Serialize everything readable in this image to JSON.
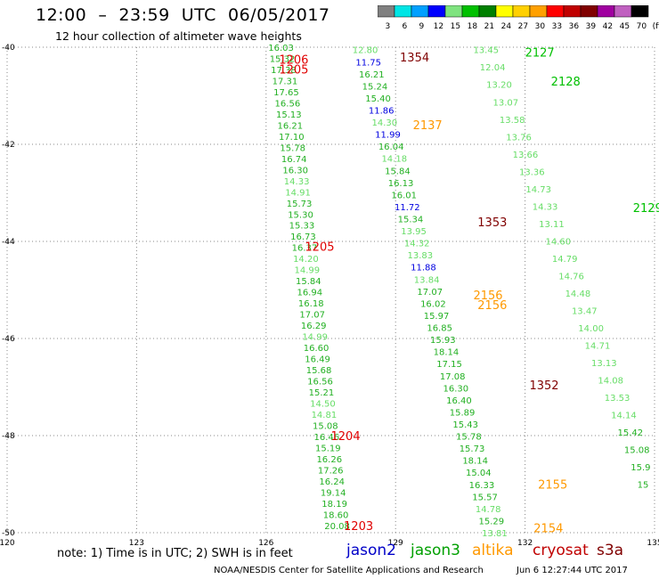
{
  "title": "12:00  –  23:59  UTC  06/05/2017",
  "subtitle": "12 hour collection of altimeter wave heights",
  "colorbar": {
    "labels": [
      "3",
      "6",
      "9",
      "12",
      "15",
      "18",
      "21",
      "24",
      "27",
      "30",
      "33",
      "36",
      "39",
      "42",
      "45",
      "70",
      "(ft)"
    ],
    "colors": [
      "#808080",
      "#00e5e5",
      "#00a0ff",
      "#0000ff",
      "#7fe37f",
      "#00c000",
      "#008000",
      "#ffff00",
      "#ffd000",
      "#ffa000",
      "#ff0000",
      "#c00000",
      "#800000",
      "#a000a0",
      "#c060c0",
      "#000000"
    ]
  },
  "note": "note:  1)  Time is in UTC;  2)  SWH is in feet",
  "legend": [
    {
      "name": "jason2",
      "color": "#0000c8"
    },
    {
      "name": "jason3",
      "color": "#00a000"
    },
    {
      "name": "altika",
      "color": "#ff9900"
    },
    {
      "name": "cryosat",
      "color": "#c00000"
    },
    {
      "name": "s3a",
      "color": "#800000"
    }
  ],
  "credit": "NOAA/NESDIS Center for Satellite Applications and Research",
  "timestamp": "Jun  6 12:27:44 UTC 2017",
  "chart_data": {
    "type": "scatter",
    "xlim": [
      120,
      135
    ],
    "ylim": [
      -50,
      -40
    ],
    "x_ticks": [
      "120",
      "123",
      "126",
      "129",
      "132",
      "135"
    ],
    "y_ticks": [
      "-40",
      "-42",
      "-44",
      "-46",
      "-48",
      "-50"
    ],
    "grid": true,
    "tracks": [
      {
        "name": "cryosat-1206",
        "color": "#00c000",
        "labels_color": "#e00000",
        "x0": 126.05,
        "y0": -40.0,
        "x1": 127.35,
        "y1": -49.85,
        "values": [
          "16.03",
          "15.32",
          "17.38",
          "17.31",
          "17.65",
          "16.56",
          "15.13",
          "16.21",
          "17.10",
          "15.78",
          "16.74",
          "16.30",
          "14.33",
          "14.91",
          "15.73",
          "15.30",
          "15.33",
          "16.73",
          "16.37",
          "14.20",
          "14.99",
          "15.84",
          "16.94",
          "16.18",
          "17.07",
          "16.29",
          "14.99",
          "16.60",
          "16.49",
          "15.68",
          "16.56",
          "15.21",
          "14.50",
          "14.81",
          "15.08",
          "16.46",
          "15.19",
          "16.26",
          "17.26",
          "16.24",
          "19.14",
          "18.19",
          "18.60",
          "20.08"
        ],
        "times": [
          {
            "t": "1206",
            "x": 126.3,
            "y": -40.25
          },
          {
            "t": "1205",
            "x": 126.3,
            "y": -40.45
          },
          {
            "t": "1205",
            "x": 126.9,
            "y": -44.1
          },
          {
            "t": "1204",
            "x": 127.5,
            "y": -48.0
          },
          {
            "t": "1203",
            "x": 127.8,
            "y": -49.85
          }
        ]
      },
      {
        "name": "jason3-a",
        "color": "#00c000",
        "labels_color": "#00c000",
        "x0": 128.0,
        "y0": -40.05,
        "x1": 131.0,
        "y1": -50.0,
        "values": [
          "12.80",
          "11.75",
          "16.21",
          "15.24",
          "15.40",
          "11.86",
          "14.30",
          "11.99",
          "16.04",
          "14.18",
          "15.84",
          "16.13",
          "16.01",
          "11.72",
          "15.34",
          "13.95",
          "14.32",
          "13.83",
          "11.88",
          "13.84",
          "17.07",
          "16.02",
          "15.97",
          "16.85",
          "15.93",
          "18.14",
          "17.15",
          "17.08",
          "16.30",
          "16.40",
          "15.89",
          "15.43",
          "15.78",
          "15.73",
          "18.14",
          "15.04",
          "16.33",
          "15.57",
          "14.78",
          "15.29",
          "13.81"
        ],
        "times": []
      },
      {
        "name": "jason3-b",
        "color": "#00c000",
        "labels_color": "#00c000",
        "x0": 130.8,
        "y0": -40.05,
        "x1": 134.6,
        "y1": -49.0,
        "values": [
          "13.45",
          "12.04",
          "13.20",
          "13.07",
          "13.58",
          "13.76",
          "13.66",
          "13.36",
          "14.73",
          "14.33",
          "13.11",
          "14.60",
          "14.79",
          "14.76",
          "14.48",
          "13.47",
          "14.00",
          "14.71",
          "13.13",
          "14.08",
          "13.53",
          "14.14",
          "15.42",
          "15.08",
          "15.9",
          "15"
        ],
        "times": [
          {
            "t": "2127",
            "x": 132.0,
            "y": -40.1
          },
          {
            "t": "2128",
            "x": 132.6,
            "y": -40.7
          },
          {
            "t": "2129",
            "x": 134.5,
            "y": -43.3
          }
        ]
      }
    ],
    "time_labels": [
      {
        "t": "1354",
        "x": 129.1,
        "y": -40.2,
        "color": "#800000"
      },
      {
        "t": "2137",
        "x": 129.4,
        "y": -41.6,
        "color": "#ff9900"
      },
      {
        "t": "1353",
        "x": 130.9,
        "y": -43.6,
        "color": "#800000"
      },
      {
        "t": "2156",
        "x": 130.8,
        "y": -45.1,
        "color": "#ff9900"
      },
      {
        "t": "2156",
        "x": 130.9,
        "y": -45.3,
        "color": "#ff9900"
      },
      {
        "t": "1352",
        "x": 132.1,
        "y": -46.95,
        "color": "#800000"
      },
      {
        "t": "2155",
        "x": 132.3,
        "y": -49.0,
        "color": "#ff9900"
      },
      {
        "t": "2154",
        "x": 132.2,
        "y": -49.9,
        "color": "#ff9900"
      }
    ]
  }
}
